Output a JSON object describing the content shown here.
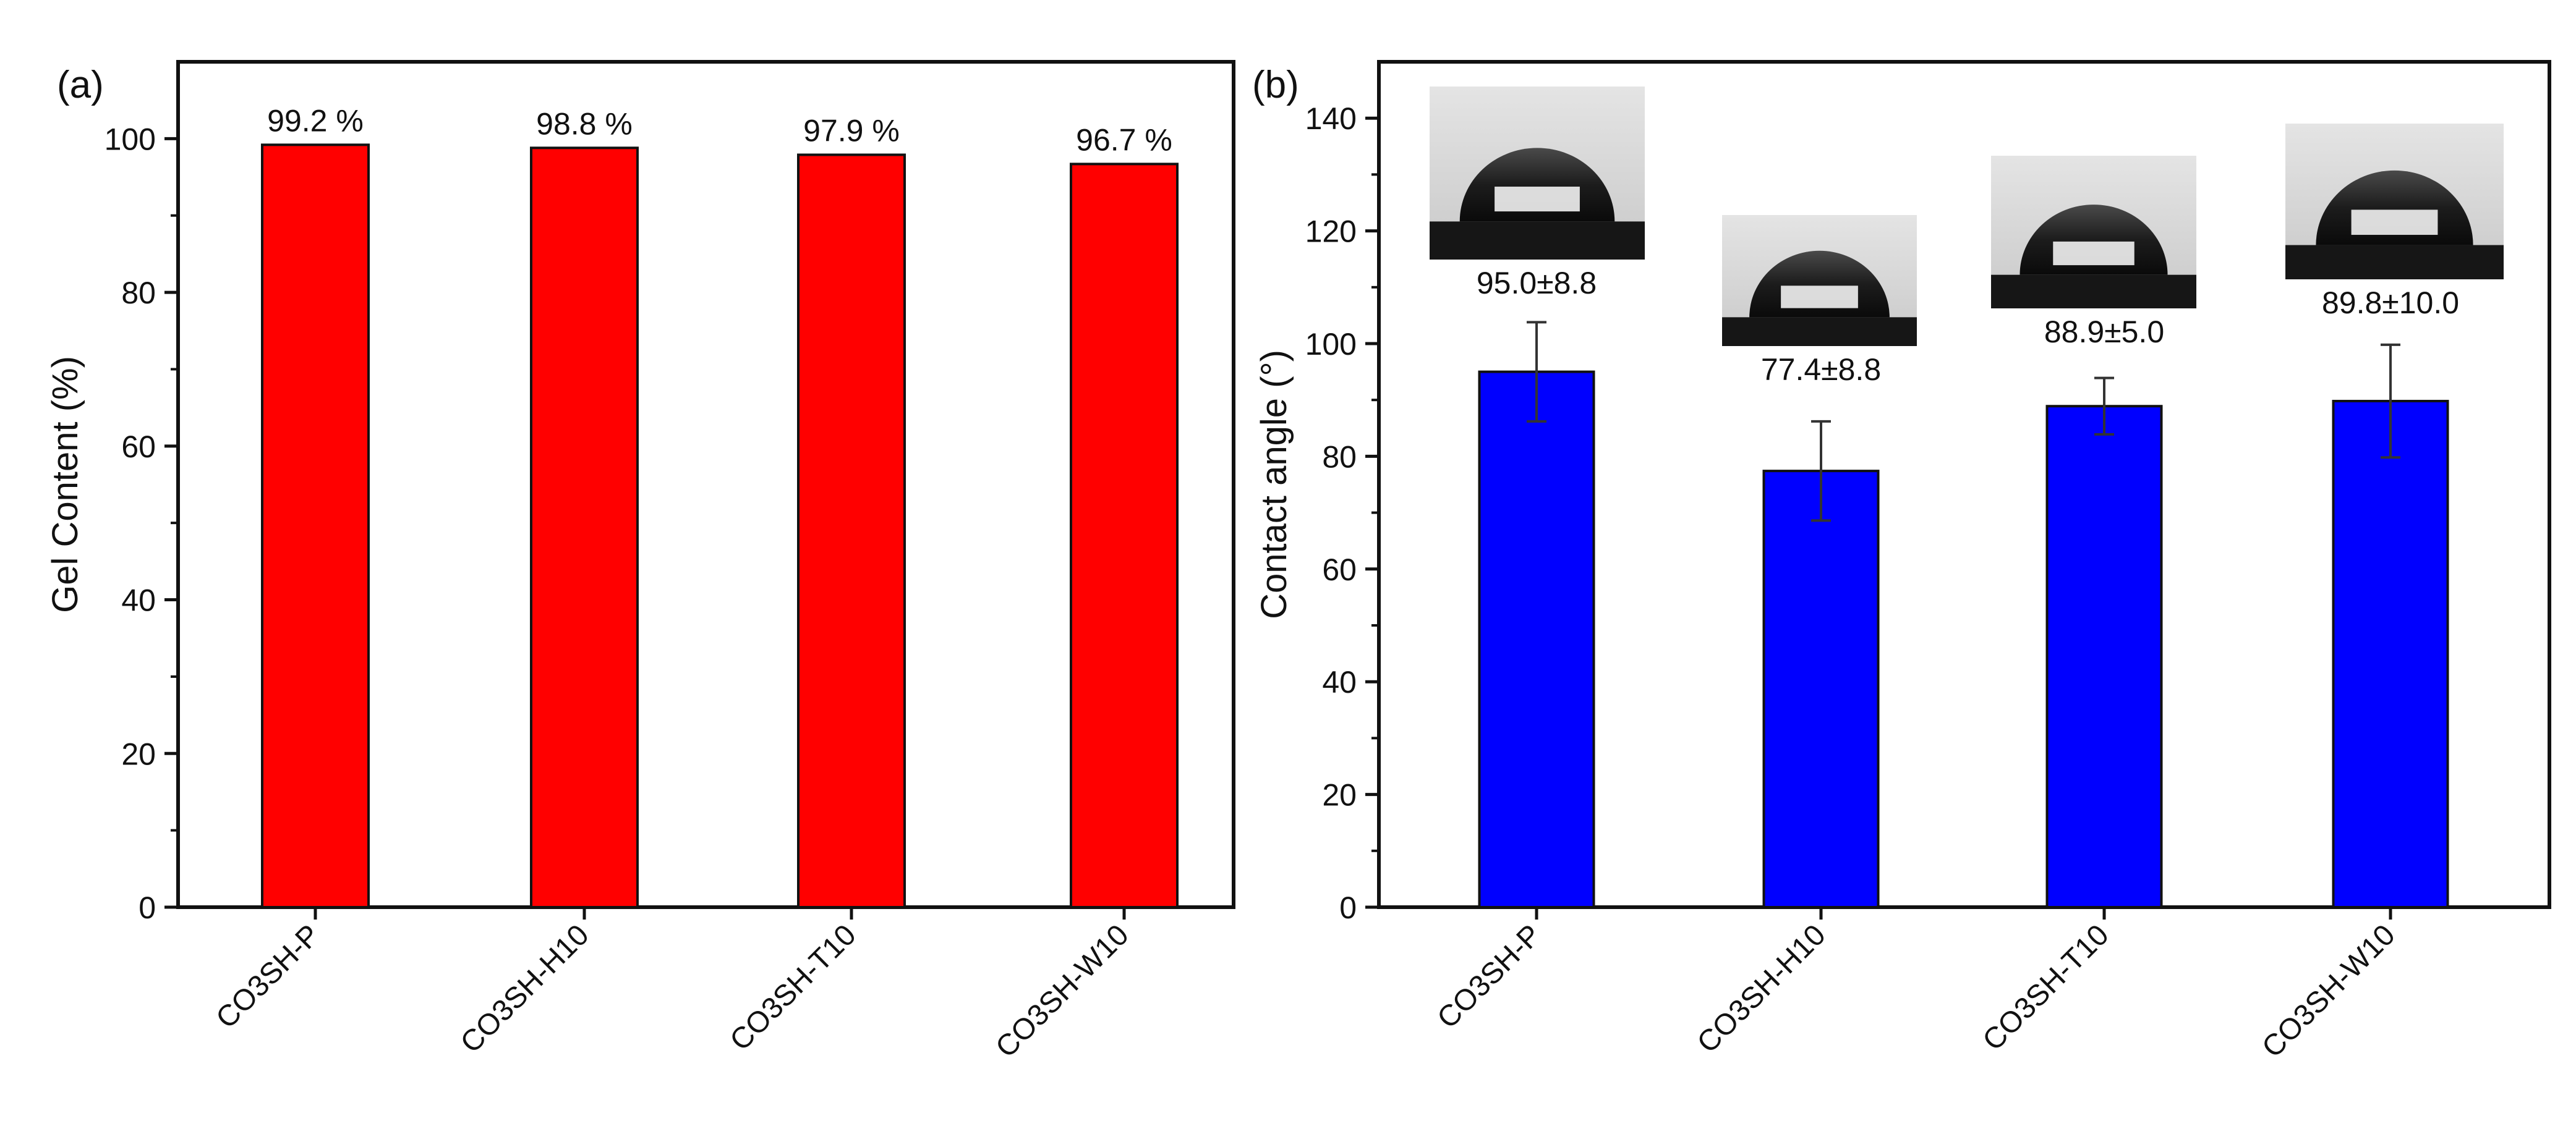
{
  "chart_data": [
    {
      "type": "bar",
      "panel_label": "(a)",
      "categories": [
        "CO3SH-P",
        "CO3SH-H10",
        "CO3SH-T10",
        "CO3SH-W10"
      ],
      "values": [
        99.2,
        98.8,
        97.9,
        96.7
      ],
      "data_labels": [
        "99.2 %",
        "98.8 %",
        "97.9 %",
        "96.7 %"
      ],
      "ylabel": "Gel Content (%)",
      "xlabel": "",
      "ylim": [
        0,
        110
      ],
      "yticks": [
        0,
        20,
        40,
        60,
        80,
        100
      ],
      "ytick_labels": [
        "0",
        "20",
        "40",
        "60",
        "80",
        "100"
      ],
      "bar_color": "#ff0000",
      "grid": false
    },
    {
      "type": "bar",
      "panel_label": "(b)",
      "categories": [
        "CO3SH-P",
        "CO3SH-H10",
        "CO3SH-T10",
        "CO3SH-W10"
      ],
      "values": [
        95.0,
        77.4,
        88.9,
        89.8
      ],
      "errors": [
        8.8,
        8.8,
        5.0,
        10.0
      ],
      "data_labels": [
        "95.0±8.8",
        "77.4±8.8",
        "88.9±5.0",
        "89.8±10.0"
      ],
      "ylabel": "Contact angle (°)",
      "xlabel": "",
      "ylim": [
        0,
        150
      ],
      "yticks": [
        0,
        20,
        40,
        60,
        80,
        100,
        120,
        140
      ],
      "ytick_labels": [
        "0",
        "20",
        "40",
        "60",
        "80",
        "100",
        "120",
        "140"
      ],
      "bar_color": "#0000ff",
      "grid": false,
      "insets": [
        "water-droplet-photo",
        "water-droplet-photo",
        "water-droplet-photo",
        "water-droplet-photo"
      ]
    }
  ]
}
